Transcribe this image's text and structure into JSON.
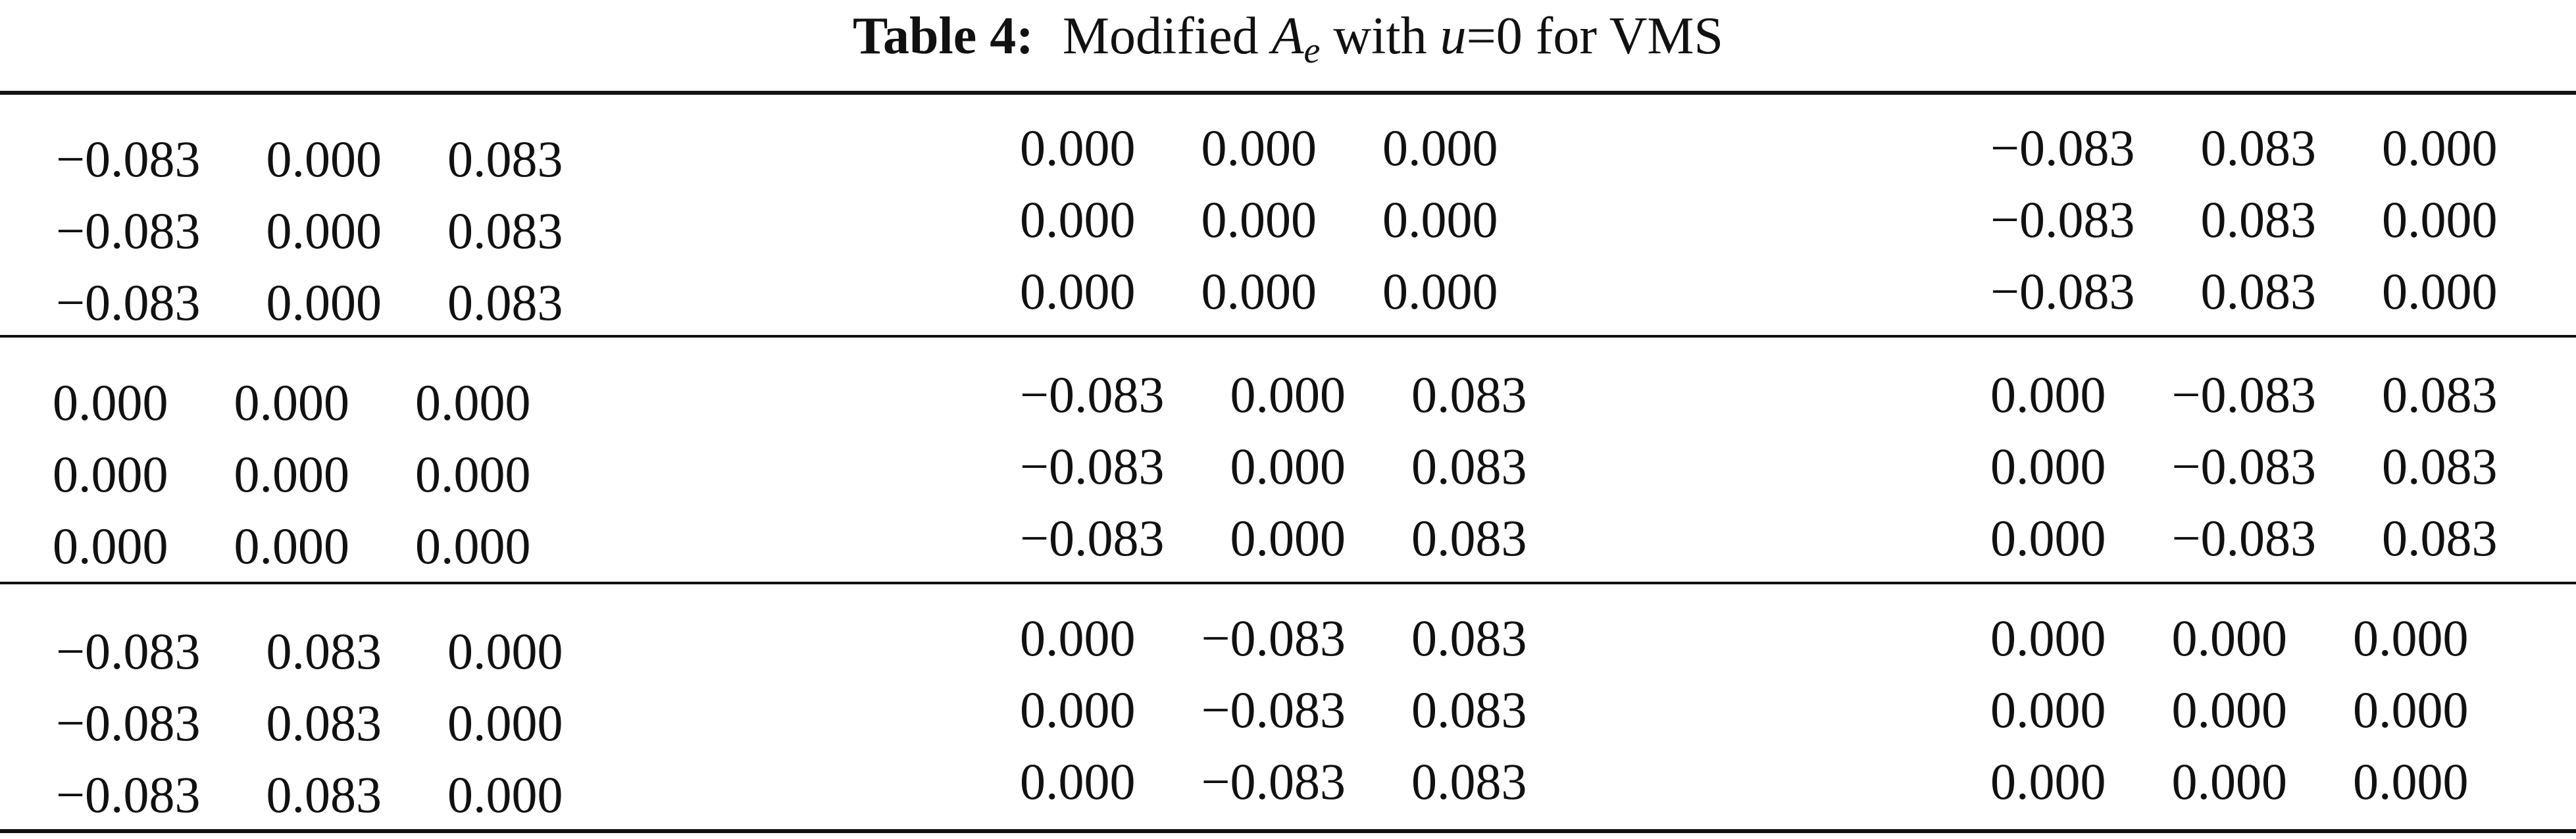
{
  "caption": {
    "label": "Table 4:",
    "text": "Modified",
    "symbol": "A",
    "subscript": "e",
    "connector": "with",
    "variable": "u",
    "relation": "=",
    "number": "0",
    "suffix": "for VMS"
  },
  "table": {
    "rows": [
      [
        [
          [
            "−0.083",
            "0.000",
            "0.083"
          ],
          [
            "−0.083",
            "0.000",
            "0.083"
          ],
          [
            "−0.083",
            "0.000",
            "0.083"
          ]
        ],
        [
          [
            "0.000",
            "0.000",
            "0.000"
          ],
          [
            "0.000",
            "0.000",
            "0.000"
          ],
          [
            "0.000",
            "0.000",
            "0.000"
          ]
        ],
        [
          [
            "−0.083",
            "0.083",
            "0.000"
          ],
          [
            "−0.083",
            "0.083",
            "0.000"
          ],
          [
            "−0.083",
            "0.083",
            "0.000"
          ]
        ]
      ],
      [
        [
          [
            "0.000",
            "0.000",
            "0.000"
          ],
          [
            "0.000",
            "0.000",
            "0.000"
          ],
          [
            "0.000",
            "0.000",
            "0.000"
          ]
        ],
        [
          [
            "−0.083",
            "0.000",
            "0.083"
          ],
          [
            "−0.083",
            "0.000",
            "0.083"
          ],
          [
            "−0.083",
            "0.000",
            "0.083"
          ]
        ],
        [
          [
            "0.000",
            "−0.083",
            "0.083"
          ],
          [
            "0.000",
            "−0.083",
            "0.083"
          ],
          [
            "0.000",
            "−0.083",
            "0.083"
          ]
        ]
      ],
      [
        [
          [
            "−0.083",
            "0.083",
            "0.000"
          ],
          [
            "−0.083",
            "0.083",
            "0.000"
          ],
          [
            "−0.083",
            "0.083",
            "0.000"
          ]
        ],
        [
          [
            "0.000",
            "−0.083",
            "0.083"
          ],
          [
            "0.000",
            "−0.083",
            "0.083"
          ],
          [
            "0.000",
            "−0.083",
            "0.083"
          ]
        ],
        [
          [
            "0.000",
            "0.000",
            "0.000"
          ],
          [
            "0.000",
            "0.000",
            "0.000"
          ],
          [
            "0.000",
            "0.000",
            "0.000"
          ]
        ]
      ]
    ]
  }
}
